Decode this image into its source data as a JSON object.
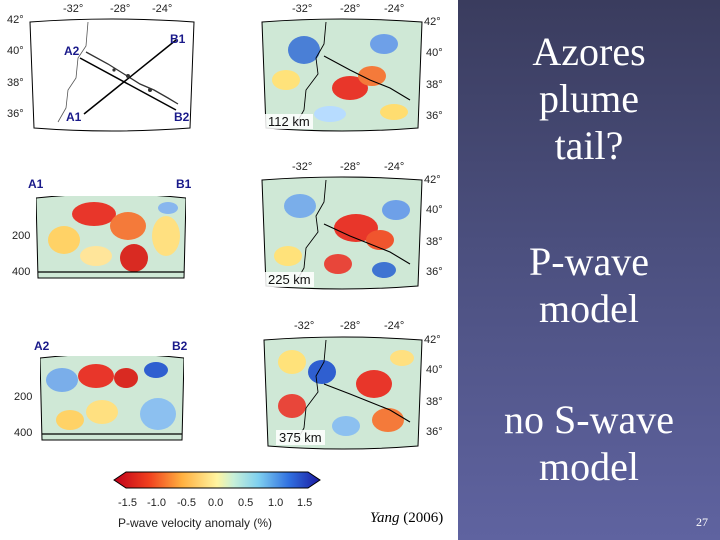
{
  "slide": {
    "title_lines": [
      "Azores",
      "plume",
      "tail?"
    ],
    "pwave_lines": [
      "P-wave",
      "model"
    ],
    "swave_lines": [
      "no S-wave",
      "model"
    ],
    "page_number": "27",
    "citation_author": "Yang",
    "citation_year": " (2006)"
  },
  "figure": {
    "map_lon_ticks": [
      "-32°",
      "-28°",
      "-24°"
    ],
    "map_lat_ticks": [
      "42°",
      "40°",
      "38°",
      "36°"
    ],
    "profile_labels": {
      "a1": "A1",
      "a2": "A2",
      "b1": "B1",
      "b2": "B2"
    },
    "depth_ticks": [
      "200",
      "400"
    ],
    "depth_slices": [
      "112 km",
      "225 km",
      "375 km"
    ],
    "colorbar_ticks": [
      "-1.5",
      "-1.0",
      "-0.5",
      "0.0",
      "0.5",
      "1.0",
      "1.5"
    ],
    "colorbar_title": "P-wave velocity anomaly (%)"
  }
}
